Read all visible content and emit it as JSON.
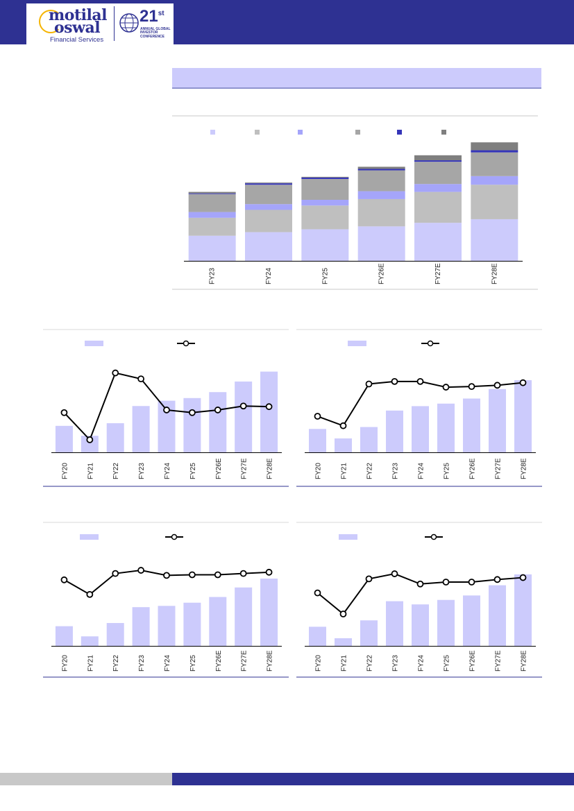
{
  "header": {
    "brand_line1": "motilal",
    "brand_line2": "oswal",
    "brand_sub": "Financial Services",
    "conf_number": "21",
    "conf_suffix": "st",
    "conf_text": "ANNUAL GLOBAL INVESTOR CONFERENCE",
    "bg_color": "#2e3192"
  },
  "colors": {
    "accent": "#2e3192",
    "bar_light": "#cccbfc",
    "line": "#000000"
  },
  "chart_data": [
    {
      "type": "bar",
      "stacked": true,
      "categories": [
        "FY23",
        "FY24",
        "FY25",
        "FY26E",
        "FY27E",
        "FY28E"
      ],
      "series": [
        {
          "color": "#cccbfc",
          "values": [
            35,
            40,
            44,
            48,
            53,
            58
          ]
        },
        {
          "color": "#bfbfbf",
          "values": [
            25,
            31,
            33,
            38,
            43,
            48
          ]
        },
        {
          "color": "#a5a5fa",
          "values": [
            8,
            8,
            8,
            11,
            11,
            12
          ]
        },
        {
          "color": "#a6a6a6",
          "values": [
            25,
            27,
            29,
            29,
            31,
            33
          ]
        },
        {
          "color": "#3535b8",
          "values": [
            1,
            2,
            2,
            2,
            2,
            3
          ]
        },
        {
          "color": "#7f7f7f",
          "values": [
            2,
            1,
            1,
            3,
            7,
            11
          ]
        }
      ],
      "ylim": [
        0,
        170
      ],
      "legend": "top"
    },
    {
      "type": "bar+line",
      "categories": [
        "FY20",
        "FY21",
        "FY22",
        "FY23",
        "FY24",
        "FY25",
        "FY26E",
        "FY27E",
        "FY28E"
      ],
      "bars": [
        40,
        25,
        44,
        70,
        78,
        82,
        91,
        107,
        122
      ],
      "line": [
        60,
        19,
        120,
        111,
        64,
        60,
        64,
        70,
        69
      ],
      "bar_ylim": [
        0,
        130
      ],
      "line_ylim": [
        0,
        130
      ]
    },
    {
      "type": "bar+line",
      "categories": [
        "FY20",
        "FY21",
        "FY22",
        "FY23",
        "FY24",
        "FY25",
        "FY26E",
        "FY27E",
        "FY28E"
      ],
      "bars": [
        37,
        22,
        40,
        66,
        73,
        77,
        85,
        100,
        114
      ],
      "line": [
        57,
        42,
        108,
        112,
        112,
        103,
        104,
        106,
        110
      ],
      "bar_ylim": [
        0,
        125
      ],
      "line_ylim": [
        0,
        125
      ]
    },
    {
      "type": "bar+line",
      "categories": [
        "FY20",
        "FY21",
        "FY22",
        "FY23",
        "FY24",
        "FY25",
        "FY26E",
        "FY27E",
        "FY28E"
      ],
      "bars": [
        31,
        15,
        36,
        61,
        63,
        68,
        77,
        92,
        106
      ],
      "line": [
        104,
        81,
        114,
        119,
        111,
        112,
        112,
        114,
        116
      ],
      "bar_ylim": [
        0,
        130
      ],
      "line_ylim": [
        0,
        130
      ]
    },
    {
      "type": "bar+line",
      "categories": [
        "FY20",
        "FY21",
        "FY22",
        "FY23",
        "FY24",
        "FY25",
        "FY26E",
        "FY27E",
        "FY28E"
      ],
      "bars": [
        30,
        12,
        40,
        70,
        65,
        72,
        79,
        95,
        112
      ],
      "line": [
        83,
        50,
        105,
        113,
        97,
        100,
        100,
        104,
        107
      ],
      "bar_ylim": [
        0,
        125
      ],
      "line_ylim": [
        0,
        125
      ]
    }
  ]
}
